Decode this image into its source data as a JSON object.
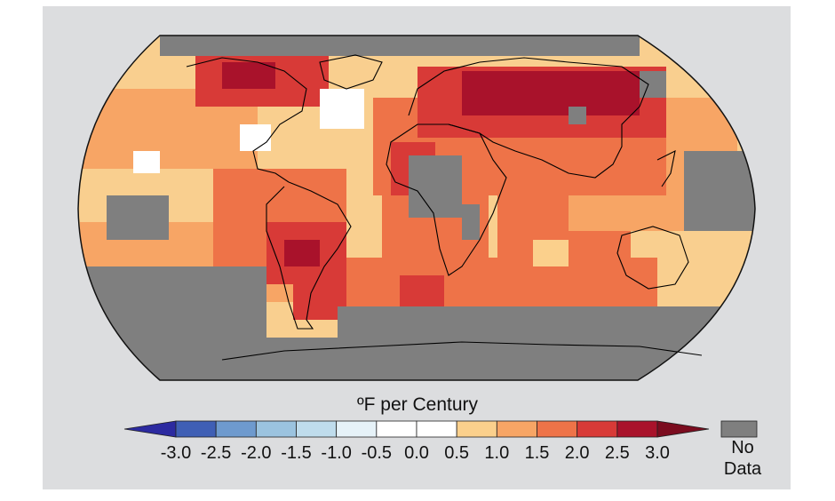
{
  "map": {
    "projection": "robinson-like",
    "title": "",
    "no_data_color": "#7f7f7f",
    "ocean_base_color": "#f8c985"
  },
  "legend": {
    "title": "ºF per Century",
    "tick_labels": [
      "-3.0",
      "-2.5",
      "-2.0",
      "-1.5",
      "-1.0",
      "-0.5",
      "0.0",
      "0.5",
      "1.0",
      "1.5",
      "2.0",
      "2.5",
      "3.0"
    ],
    "bins": [
      {
        "color": "#2c2aa0"
      },
      {
        "color": "#3f5fb5"
      },
      {
        "color": "#6e9ace"
      },
      {
        "color": "#9bc3df"
      },
      {
        "color": "#bfdcec"
      },
      {
        "color": "#e6f2f8"
      },
      {
        "color": "#ffffff"
      },
      {
        "color": "#ffffff"
      },
      {
        "color": "#fbd08c"
      },
      {
        "color": "#f7a565"
      },
      {
        "color": "#ee7348"
      },
      {
        "color": "#d83a37"
      },
      {
        "color": "#a9122b"
      },
      {
        "color": "#7b0c1f"
      }
    ],
    "no_data": {
      "label": "No Data",
      "label_lines": [
        "No",
        "Data"
      ],
      "color": "#7f7f7f"
    }
  }
}
